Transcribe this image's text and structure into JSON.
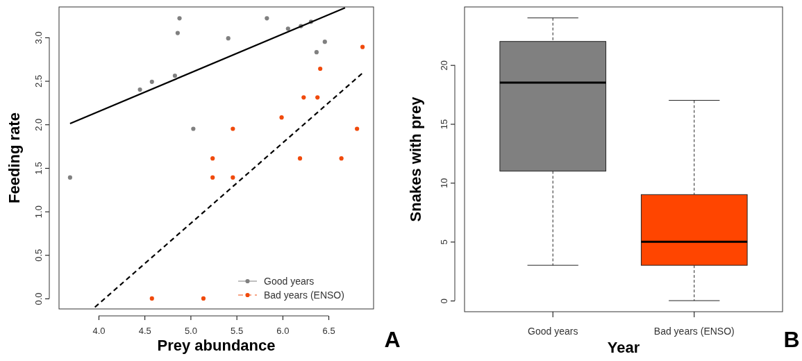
{
  "chart_data": [
    {
      "type": "scatter",
      "xlabel": "Prey abundance",
      "ylabel": "Feeding rate",
      "xlim": [
        3.57,
        6.99
      ],
      "ylim": [
        -0.12,
        3.35
      ],
      "xticks": [
        {
          "value": 4,
          "label": "4.0"
        },
        4.5,
        {
          "value": 5,
          "label": "5.0"
        },
        5.5,
        {
          "value": 6,
          "label": "6.0"
        },
        6.5
      ],
      "yticks": [
        {
          "value": 0,
          "label": "0.0"
        },
        0.5,
        {
          "value": 1,
          "label": "1.0"
        },
        1.5,
        {
          "value": 2,
          "label": "2.0"
        },
        2.5,
        {
          "value": 3,
          "label": "3.0"
        }
      ],
      "grid": false,
      "legend": "bottom right",
      "series": [
        {
          "name": "Good years",
          "color": "#808080",
          "marker": "circle",
          "line_style": "solid",
          "x": [
            3.69,
            4.45,
            4.58,
            4.83,
            4.86,
            4.88,
            5.03,
            5.41,
            5.83,
            6.06,
            6.2,
            6.31,
            6.37,
            6.46
          ],
          "values": [
            1.39,
            2.4,
            2.49,
            2.56,
            3.05,
            3.22,
            1.95,
            2.99,
            3.22,
            3.1,
            3.13,
            3.18,
            2.83,
            2.95
          ]
        },
        {
          "name": "Bad years (ENSO)",
          "color": "#f04a0c",
          "marker": "circle",
          "line_style": "dashed",
          "x": [
            4.58,
            5.14,
            5.24,
            5.24,
            5.46,
            5.46,
            5.99,
            6.23,
            6.19,
            6.38,
            6.41,
            6.64,
            6.81,
            6.87
          ],
          "values": [
            0,
            0,
            1.61,
            1.39,
            1.95,
            1.39,
            2.08,
            2.31,
            1.61,
            2.31,
            2.64,
            1.61,
            1.95,
            2.89
          ]
        },
        {
          "type": "line",
          "color": "#000000",
          "line_style": "solid",
          "x": [
            3.69,
            6.68
          ],
          "values": [
            2.01,
            3.34
          ]
        },
        {
          "type": "line",
          "color": "#000000",
          "line_style": "dashed",
          "x": [
            3.96,
            6.87
          ],
          "values": [
            -0.1,
            2.59
          ]
        }
      ],
      "annotations": [
        "A"
      ]
    },
    {
      "type": "box",
      "xlabel": "Year",
      "ylabel": "Snakes with prey",
      "categories": [
        "Good years",
        "Bad years (ENSO)"
      ],
      "ylim": [
        -0.94,
        24.93
      ],
      "yticks": [
        0,
        5,
        10,
        15,
        20
      ],
      "grid": false,
      "series": [
        {
          "colors": [
            "#808080",
            "#ff4500"
          ],
          "boxes": [
            {
              "low": 3,
              "q1": 11,
              "median": 18.5,
              "q3": 22,
              "high": 24
            },
            {
              "low": 0,
              "q1": 3,
              "median": 5,
              "q3": 9,
              "high": 17
            }
          ]
        }
      ],
      "annotations": [
        "B"
      ]
    }
  ]
}
